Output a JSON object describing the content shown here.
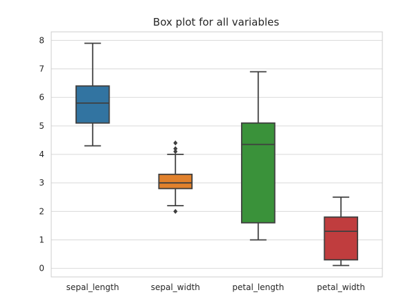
{
  "chart_data": {
    "type": "box",
    "title": "Box plot for all variables",
    "xlabel": "",
    "ylabel": "",
    "ylim": [
      -0.3,
      8.3
    ],
    "yticks": [
      0,
      1,
      2,
      3,
      4,
      5,
      6,
      7,
      8
    ],
    "grid": true,
    "categories": [
      "sepal_length",
      "sepal_width",
      "petal_length",
      "petal_width"
    ],
    "series": [
      {
        "category": "sepal_length",
        "whisker_low": 4.3,
        "q1": 5.1,
        "median": 5.8,
        "q3": 6.4,
        "whisker_high": 7.9,
        "outliers": [],
        "color": "#3274a1"
      },
      {
        "category": "sepal_width",
        "whisker_low": 2.2,
        "q1": 2.8,
        "median": 3.0,
        "q3": 3.3,
        "whisker_high": 4.0,
        "outliers": [
          2.0,
          4.1,
          4.2,
          4.4
        ],
        "color": "#e1812c"
      },
      {
        "category": "petal_length",
        "whisker_low": 1.0,
        "q1": 1.6,
        "median": 4.35,
        "q3": 5.1,
        "whisker_high": 6.9,
        "outliers": [],
        "color": "#3a923a"
      },
      {
        "category": "petal_width",
        "whisker_low": 0.1,
        "q1": 0.3,
        "median": 1.3,
        "q3": 1.8,
        "whisker_high": 2.5,
        "outliers": [],
        "color": "#c03d3e"
      }
    ]
  }
}
